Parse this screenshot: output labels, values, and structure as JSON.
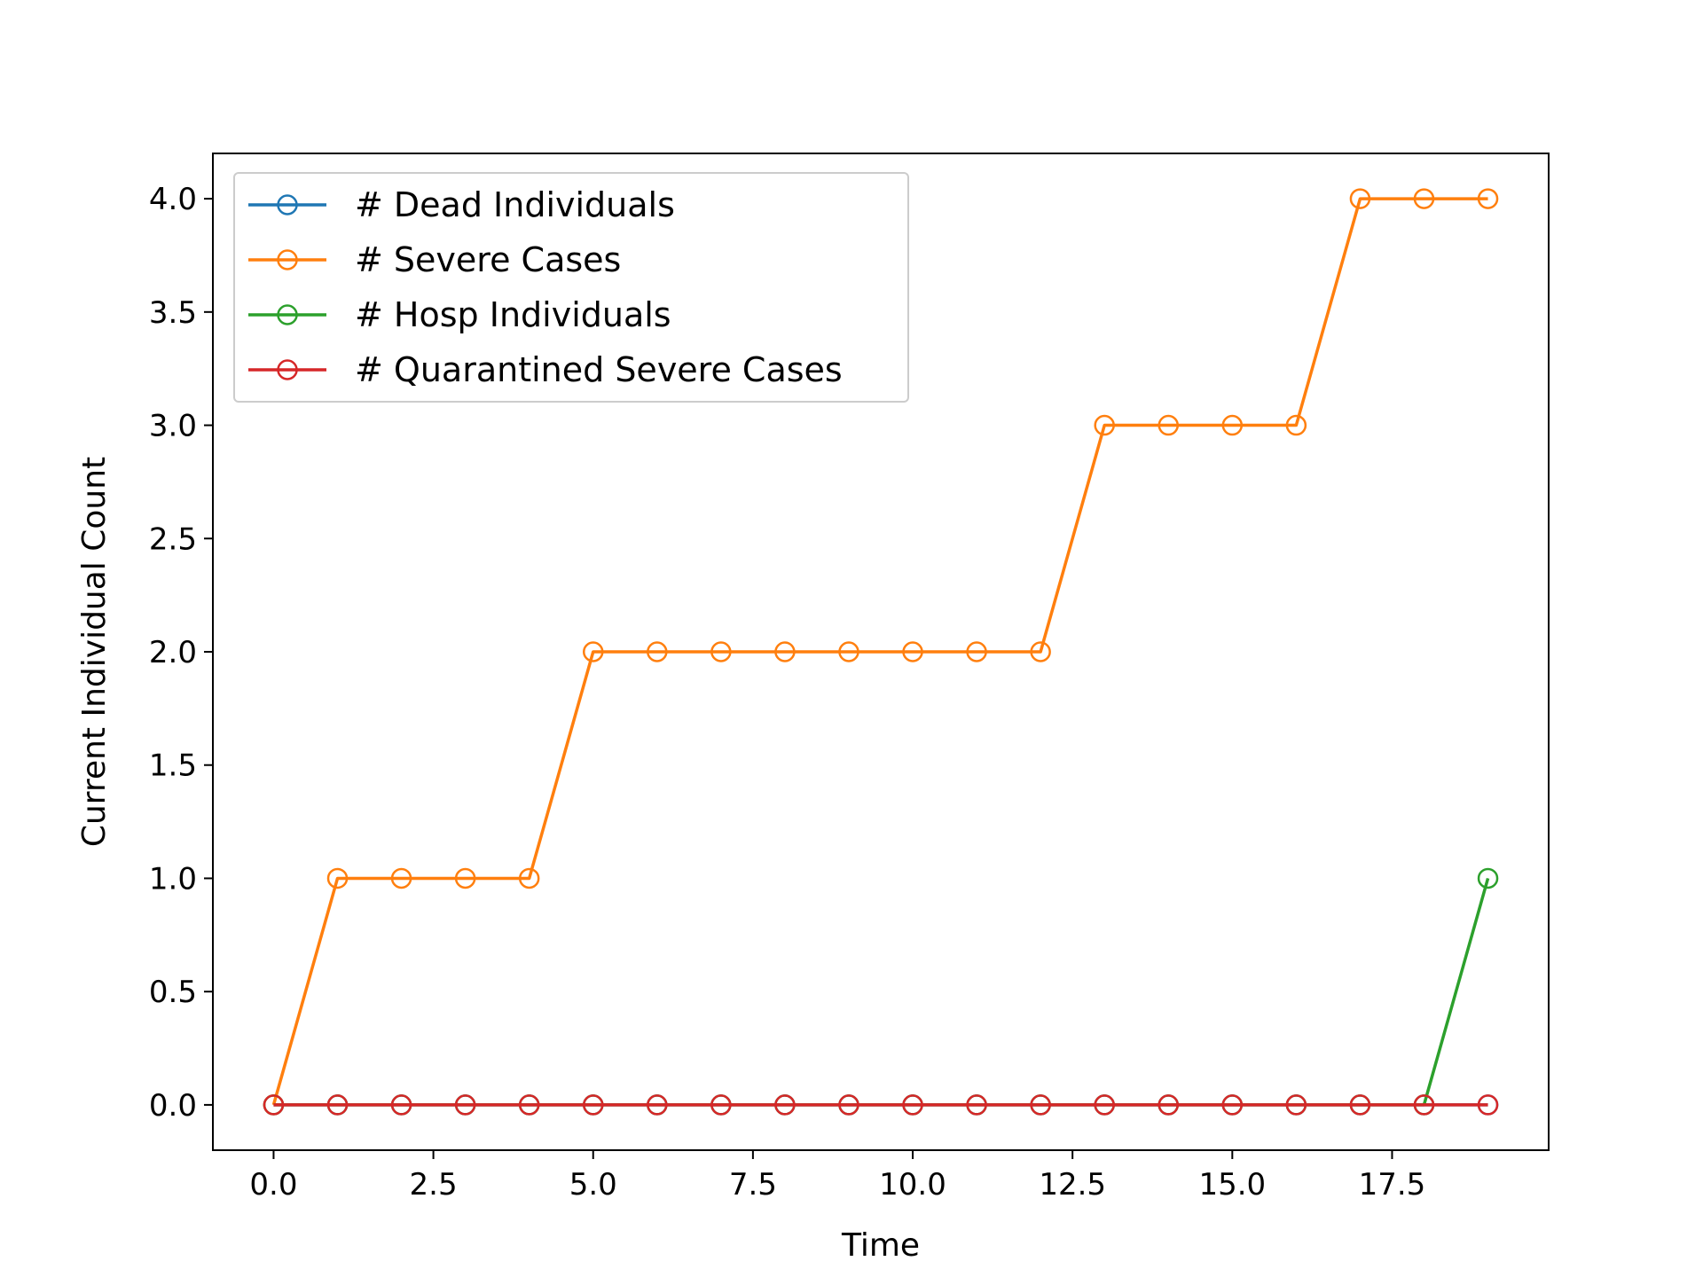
{
  "chart_data": {
    "type": "line",
    "xlabel": "Time",
    "ylabel": "Current Individual Count",
    "xlim": [
      -0.95,
      19.95
    ],
    "ylim": [
      -0.2,
      4.2
    ],
    "x_ticks": [
      0.0,
      2.5,
      5.0,
      7.5,
      10.0,
      12.5,
      15.0,
      17.5
    ],
    "x_tick_labels": [
      "0.0",
      "2.5",
      "5.0",
      "7.5",
      "10.0",
      "12.5",
      "15.0",
      "17.5"
    ],
    "y_ticks": [
      0.0,
      0.5,
      1.0,
      1.5,
      2.0,
      2.5,
      3.0,
      3.5,
      4.0
    ],
    "y_tick_labels": [
      "0.0",
      "0.5",
      "1.0",
      "1.5",
      "2.0",
      "2.5",
      "3.0",
      "3.5",
      "4.0"
    ],
    "grid": false,
    "legend_position": "top-left",
    "marker": "open-circle",
    "x": [
      0,
      1,
      2,
      3,
      4,
      5,
      6,
      7,
      8,
      9,
      10,
      11,
      12,
      13,
      14,
      15,
      16,
      17,
      18,
      19
    ],
    "series": [
      {
        "name": "# Dead Individuals",
        "color": "#1f77b4",
        "values": [
          0,
          0,
          0,
          0,
          0,
          0,
          0,
          0,
          0,
          0,
          0,
          0,
          0,
          0,
          0,
          0,
          0,
          0,
          0,
          0
        ]
      },
      {
        "name": "# Severe Cases",
        "color": "#ff7f0e",
        "values": [
          0,
          1,
          1,
          1,
          1,
          2,
          2,
          2,
          2,
          2,
          2,
          2,
          2,
          3,
          3,
          3,
          3,
          4,
          4,
          4
        ]
      },
      {
        "name": "# Hosp Individuals",
        "color": "#2ca02c",
        "values": [
          0,
          0,
          0,
          0,
          0,
          0,
          0,
          0,
          0,
          0,
          0,
          0,
          0,
          0,
          0,
          0,
          0,
          0,
          0,
          1
        ]
      },
      {
        "name": "# Quarantined Severe Cases",
        "color": "#d62728",
        "values": [
          0,
          0,
          0,
          0,
          0,
          0,
          0,
          0,
          0,
          0,
          0,
          0,
          0,
          0,
          0,
          0,
          0,
          0,
          0,
          0
        ]
      }
    ]
  }
}
